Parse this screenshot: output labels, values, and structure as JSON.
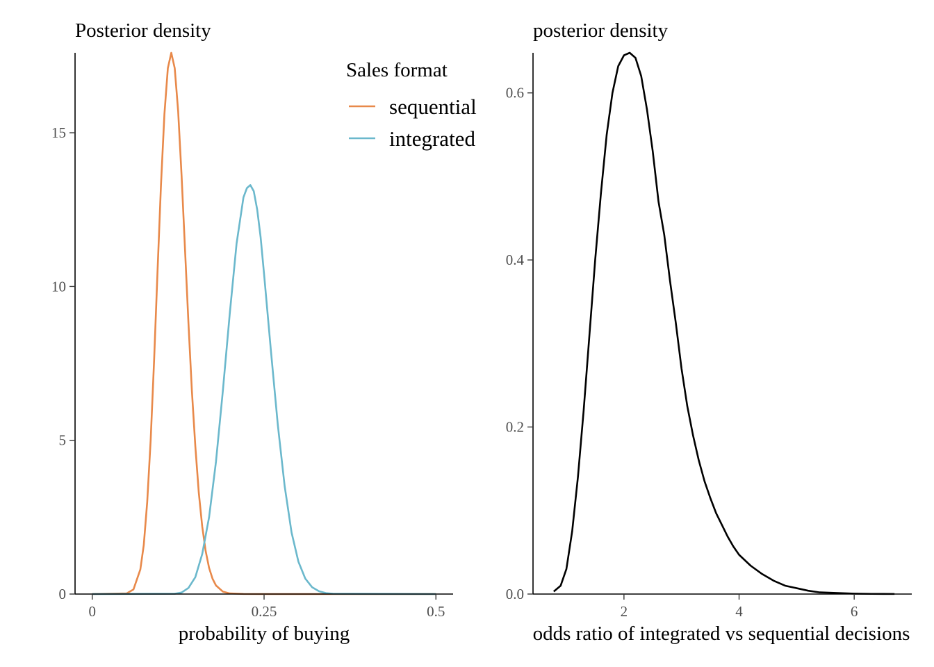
{
  "chart_data": [
    {
      "type": "line",
      "title": "Posterior density",
      "xlabel": "probability of buying",
      "ylabel": "",
      "xlim": [
        -0.025,
        0.525
      ],
      "ylim": [
        0,
        17.6
      ],
      "x_ticks": [
        0,
        0.25,
        0.5
      ],
      "x_tick_labels": [
        "0",
        "0.25",
        "0.5"
      ],
      "y_ticks": [
        0,
        5,
        10,
        15
      ],
      "y_tick_labels": [
        "0",
        "5",
        "10",
        "15"
      ],
      "grid": false,
      "legend": {
        "title": "Sales format",
        "position": "top-right",
        "entries": [
          "sequential",
          "integrated"
        ]
      },
      "series": [
        {
          "name": "sequential",
          "color": "#E8894A",
          "x": [
            0,
            0.05,
            0.06,
            0.07,
            0.075,
            0.08,
            0.085,
            0.09,
            0.095,
            0.1,
            0.105,
            0.11,
            0.115,
            0.12,
            0.125,
            0.13,
            0.135,
            0.14,
            0.145,
            0.15,
            0.155,
            0.16,
            0.165,
            0.17,
            0.175,
            0.18,
            0.19,
            0.2,
            0.22,
            0.25,
            0.5
          ],
          "values": [
            0,
            0.02,
            0.15,
            0.8,
            1.6,
            3.0,
            5.0,
            7.6,
            10.5,
            13.3,
            15.6,
            17.1,
            17.6,
            17.1,
            15.7,
            13.6,
            11.2,
            8.8,
            6.6,
            4.8,
            3.3,
            2.2,
            1.4,
            0.85,
            0.5,
            0.28,
            0.08,
            0.02,
            0.003,
            0,
            0
          ]
        },
        {
          "name": "integrated",
          "color": "#6BB8CC",
          "x": [
            0,
            0.12,
            0.13,
            0.14,
            0.15,
            0.16,
            0.17,
            0.18,
            0.19,
            0.2,
            0.21,
            0.22,
            0.225,
            0.23,
            0.235,
            0.24,
            0.245,
            0.25,
            0.26,
            0.27,
            0.28,
            0.29,
            0.3,
            0.31,
            0.32,
            0.33,
            0.34,
            0.35,
            0.5
          ],
          "values": [
            0,
            0.01,
            0.05,
            0.2,
            0.55,
            1.3,
            2.5,
            4.3,
            6.6,
            9.1,
            11.4,
            12.9,
            13.2,
            13.3,
            13.1,
            12.5,
            11.6,
            10.4,
            7.9,
            5.5,
            3.5,
            2.0,
            1.05,
            0.5,
            0.22,
            0.09,
            0.03,
            0.01,
            0
          ]
        }
      ]
    },
    {
      "type": "line",
      "title": "posterior density",
      "xlabel": "odds ratio of integrated vs sequential decisions",
      "ylabel": "",
      "xlim": [
        0.42,
        7.0
      ],
      "ylim": [
        0,
        0.648
      ],
      "x_ticks": [
        2,
        4,
        6
      ],
      "x_tick_labels": [
        "2",
        "4",
        "6"
      ],
      "y_ticks": [
        0,
        0.2,
        0.4,
        0.6
      ],
      "y_tick_labels": [
        "0.0",
        "0.2",
        "0.4",
        "0.6"
      ],
      "grid": false,
      "series": [
        {
          "color": "#000000",
          "x": [
            0.78,
            0.9,
            1.0,
            1.1,
            1.2,
            1.3,
            1.4,
            1.5,
            1.6,
            1.7,
            1.8,
            1.9,
            2.0,
            2.1,
            2.2,
            2.3,
            2.4,
            2.5,
            2.6,
            2.7,
            2.8,
            2.9,
            3.0,
            3.1,
            3.2,
            3.3,
            3.4,
            3.5,
            3.6,
            3.7,
            3.8,
            3.9,
            4.0,
            4.2,
            4.4,
            4.6,
            4.8,
            5.0,
            5.2,
            5.4,
            5.6,
            5.8,
            6.0,
            6.3,
            6.7
          ],
          "values": [
            0.003,
            0.01,
            0.03,
            0.075,
            0.14,
            0.22,
            0.31,
            0.4,
            0.48,
            0.55,
            0.6,
            0.632,
            0.645,
            0.648,
            0.642,
            0.62,
            0.58,
            0.53,
            0.47,
            0.43,
            0.375,
            0.325,
            0.27,
            0.225,
            0.19,
            0.16,
            0.135,
            0.115,
            0.097,
            0.083,
            0.069,
            0.057,
            0.047,
            0.034,
            0.024,
            0.016,
            0.01,
            0.007,
            0.004,
            0.002,
            0.0015,
            0.001,
            0.0005,
            0.0002,
            0.0001
          ]
        }
      ]
    }
  ]
}
